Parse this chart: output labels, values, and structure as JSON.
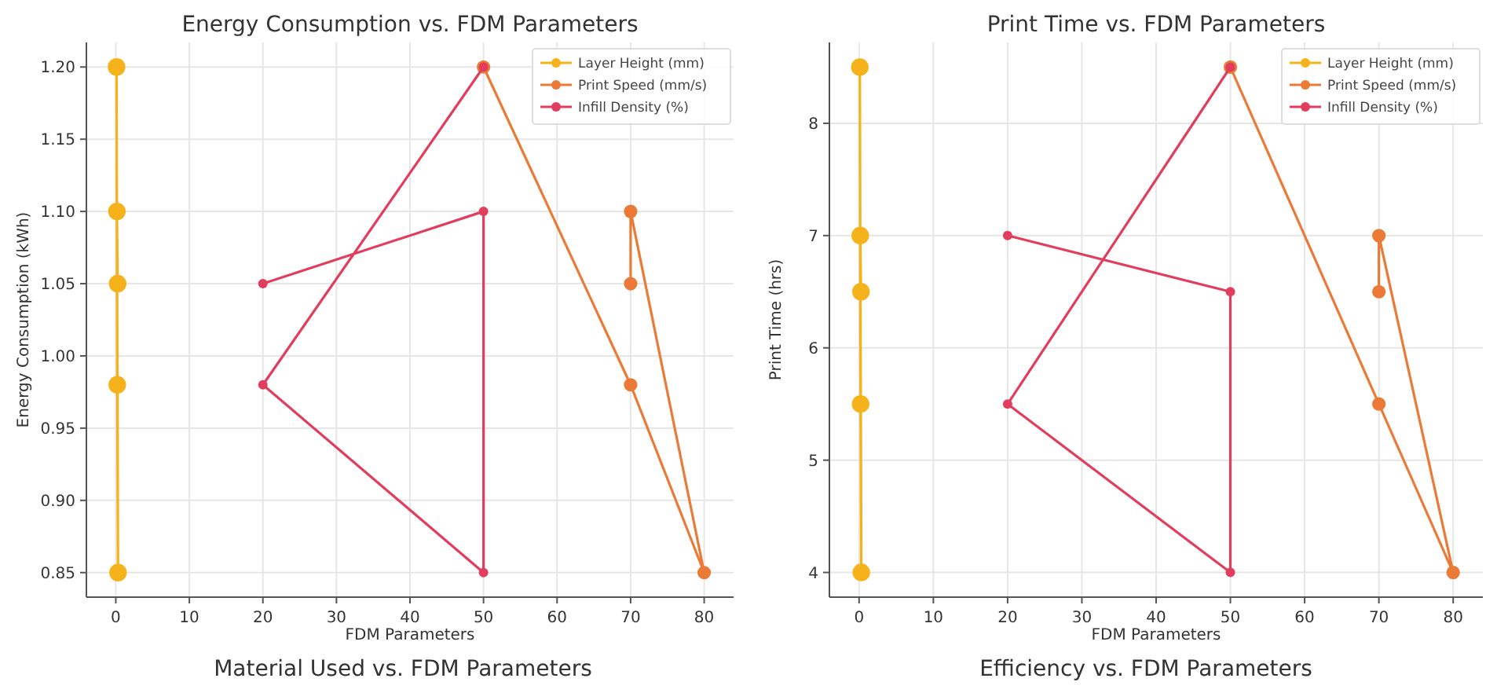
{
  "chart_data": [
    {
      "type": "line",
      "title": "Energy Consumption vs. FDM Parameters",
      "xlabel": "FDM Parameters",
      "ylabel": "Energy Consumption (kWh)",
      "xlim": [
        -4,
        84
      ],
      "xticks": [
        0,
        10,
        20,
        30,
        40,
        50,
        60,
        70,
        80
      ],
      "ylim": [
        0.833,
        1.217
      ],
      "yticks": [
        {
          "value": 0.85,
          "label": "0.85"
        },
        {
          "value": 0.9,
          "label": "0.90"
        },
        {
          "value": 0.95,
          "label": "0.95"
        },
        {
          "value": 1.0,
          "label": "1.00"
        },
        {
          "value": 1.05,
          "label": "1.05"
        },
        {
          "value": 1.1,
          "label": "1.10"
        },
        {
          "value": 1.15,
          "label": "1.15"
        },
        {
          "value": 1.2,
          "label": "1.20"
        }
      ],
      "grid": true,
      "legend": "top right",
      "marker": "circle",
      "series": [
        {
          "name": "Layer Height (mm)",
          "color": "#f5b21b",
          "x": [
            0.1,
            0.2,
            0.3,
            0.15,
            0.25
          ],
          "values": [
            1.2,
            0.98,
            0.85,
            1.1,
            1.05
          ]
        },
        {
          "name": "Print Speed (mm/s)",
          "color": "#ea7a36",
          "x": [
            50,
            70,
            80,
            70,
            70
          ],
          "values": [
            1.2,
            0.98,
            0.85,
            1.1,
            1.05
          ]
        },
        {
          "name": "Infill Density (%)",
          "color": "#e23d5c",
          "x": [
            20,
            50,
            50,
            20,
            50
          ],
          "values": [
            1.05,
            1.1,
            0.85,
            0.98,
            1.2
          ]
        }
      ]
    },
    {
      "type": "line",
      "title": "Print Time vs. FDM Parameters",
      "xlabel": "FDM Parameters",
      "ylabel": "Print Time (hrs)",
      "xlim": [
        -4,
        84
      ],
      "xticks": [
        0,
        10,
        20,
        30,
        40,
        50,
        60,
        70,
        80
      ],
      "ylim": [
        3.78,
        8.72
      ],
      "yticks": [
        4,
        5,
        6,
        7,
        8
      ],
      "grid": true,
      "legend": "top right",
      "marker": "circle",
      "series": [
        {
          "name": "Layer Height (mm)",
          "color": "#f5b21b",
          "x": [
            0.1,
            0.2,
            0.3,
            0.15,
            0.25
          ],
          "values": [
            8.5,
            5.5,
            4,
            7,
            6.5
          ]
        },
        {
          "name": "Print Speed (mm/s)",
          "color": "#ea7a36",
          "x": [
            50,
            70,
            80,
            70,
            70
          ],
          "values": [
            8.5,
            5.5,
            4,
            7,
            6.5
          ]
        },
        {
          "name": "Infill Density (%)",
          "color": "#e23d5c",
          "x": [
            20,
            50,
            50,
            20,
            50
          ],
          "values": [
            7,
            6.5,
            4,
            5.5,
            8.5
          ]
        }
      ]
    },
    {
      "type": "other",
      "title": "Material Used vs. FDM Parameters"
    },
    {
      "type": "other",
      "title": "Efficiency vs. FDM Parameters"
    }
  ]
}
